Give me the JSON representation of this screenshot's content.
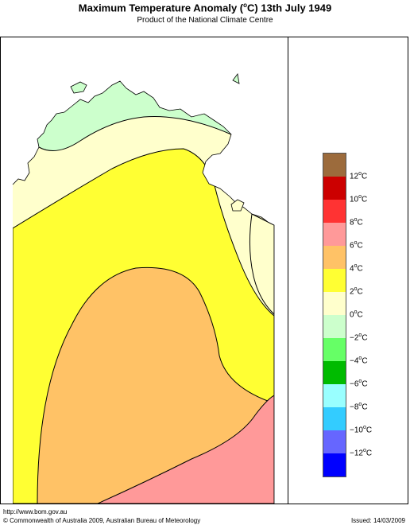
{
  "title": {
    "prefix": "Maximum Temperature Anomaly (",
    "degree": "o",
    "suffix": "C)  13th July 1949"
  },
  "subtitle": "Product of the National Climate Centre",
  "legend": {
    "items": [
      {
        "label": "12",
        "unit": "C",
        "color": "#9c6b3c"
      },
      {
        "label": "10",
        "unit": "C",
        "color": "#cc0000"
      },
      {
        "label": "8",
        "unit": "C",
        "color": "#ff3333"
      },
      {
        "label": "6",
        "unit": "C",
        "color": "#ff9999"
      },
      {
        "label": "4",
        "unit": "C",
        "color": "#ffc266"
      },
      {
        "label": "2",
        "unit": "C",
        "color": "#ffff33"
      },
      {
        "label": "0",
        "unit": "C",
        "color": "#ffffcc"
      },
      {
        "label": "−2",
        "unit": "C",
        "color": "#ccffcc"
      },
      {
        "label": "−4",
        "unit": "C",
        "color": "#66ff66"
      },
      {
        "label": "−6",
        "unit": "C",
        "color": "#00bb00"
      },
      {
        "label": "−8",
        "unit": "C",
        "color": "#99ffff"
      },
      {
        "label": "−10",
        "unit": "C",
        "color": "#33ccff"
      },
      {
        "label": "−12",
        "unit": "C",
        "color": "#6666ff"
      },
      {
        "label": "",
        "unit": "",
        "color": "#0000ff"
      }
    ]
  },
  "map": {
    "zone_colors": {
      "cool": "#ccffcc",
      "neutral": "#ffffcc",
      "warm": "#ffff33",
      "warmer": "#ffc266",
      "hot": "#ff9999"
    }
  },
  "footer": {
    "url": "http://www.bom.gov.au",
    "copyright": "© Commonwealth of Australia 2009, Australian Bureau of Meteorology",
    "issued": "Issued: 14/03/2009"
  }
}
